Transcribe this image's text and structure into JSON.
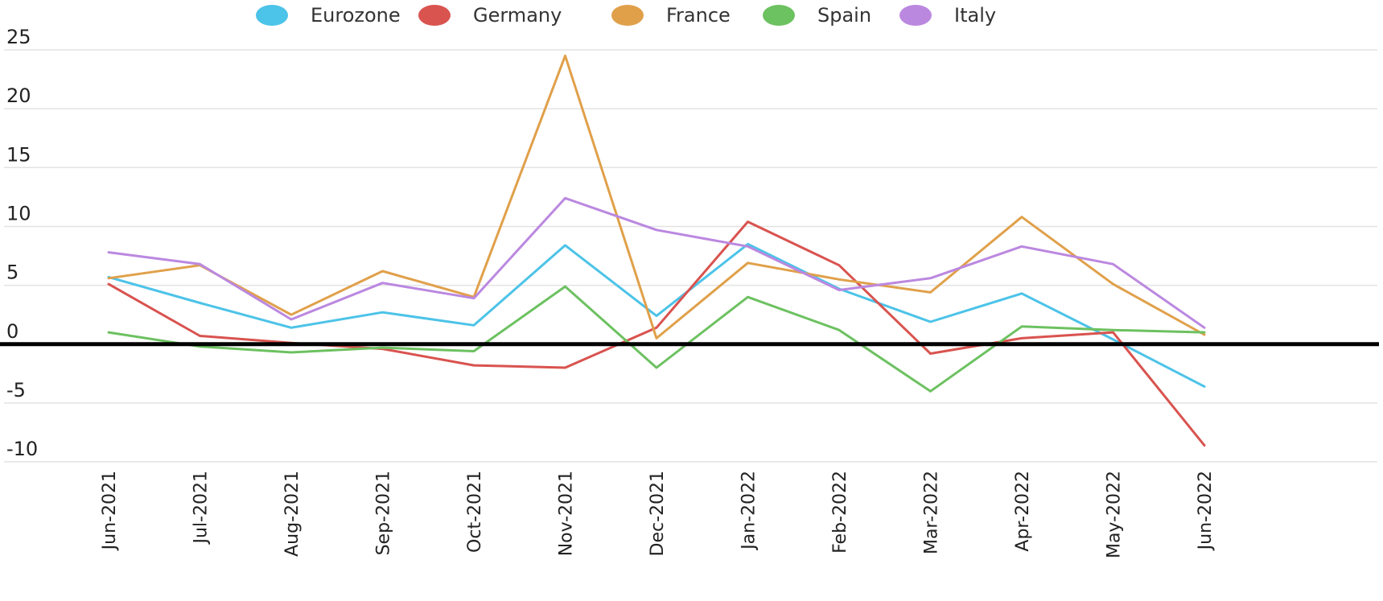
{
  "chart_data": {
    "type": "line",
    "categories": [
      "Jun-2021",
      "Jul-2021",
      "Aug-2021",
      "Sep-2021",
      "Oct-2021",
      "Nov-2021",
      "Dec-2021",
      "Jan-2022",
      "Feb-2022",
      "Mar-2022",
      "Apr-2022",
      "May-2022",
      "Jun-2022"
    ],
    "series": [
      {
        "name": "Eurozone",
        "color": "#4cc3e8",
        "values": [
          5.7,
          3.5,
          1.4,
          2.7,
          1.6,
          8.4,
          2.4,
          8.5,
          4.7,
          1.9,
          4.3,
          0.4,
          -3.6
        ]
      },
      {
        "name": "Germany",
        "color": "#d9534f",
        "values": [
          5.1,
          0.7,
          0.1,
          -0.4,
          -1.8,
          -2.0,
          1.4,
          10.4,
          6.7,
          -0.8,
          0.5,
          1.0,
          -8.6
        ]
      },
      {
        "name": "France",
        "color": "#e0a04a",
        "values": [
          5.6,
          6.7,
          2.5,
          6.2,
          4.0,
          24.5,
          0.5,
          6.9,
          5.5,
          4.4,
          10.8,
          5.1,
          0.8
        ]
      },
      {
        "name": "Spain",
        "color": "#6cc160",
        "values": [
          1.0,
          -0.2,
          -0.7,
          -0.3,
          -0.6,
          4.9,
          -2.0,
          4.0,
          1.2,
          -4.0,
          1.5,
          1.2,
          1.0
        ]
      },
      {
        "name": "Italy",
        "color": "#bb88e0",
        "values": [
          7.8,
          6.8,
          2.1,
          5.2,
          3.9,
          12.4,
          9.7,
          8.3,
          4.6,
          5.6,
          8.3,
          6.8,
          1.4
        ]
      }
    ],
    "yticks": [
      "25",
      "20",
      "15",
      "10",
      "5",
      "0",
      "-5",
      "-10"
    ],
    "ytick_values": [
      25,
      20,
      15,
      10,
      5,
      0,
      -5,
      -10
    ],
    "ylim": [
      -10,
      25
    ],
    "grid": true,
    "legend": "top"
  }
}
